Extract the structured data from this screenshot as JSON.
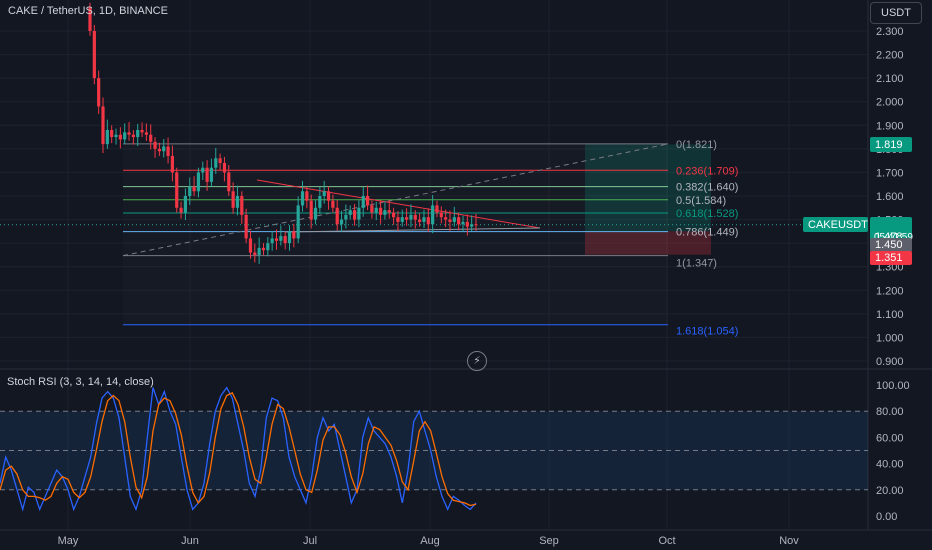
{
  "header": {
    "title": "CAKE / TetherUS, 1D, BINANCE",
    "currency": "USDT"
  },
  "indicator": {
    "title": "Stoch RSI (3, 3, 14, 14, close)"
  },
  "markers": {
    "bolt_icon": "lightning-icon"
  },
  "colors": {
    "up": "#26a69a",
    "down": "#f23645",
    "k_line": "#2962ff",
    "d_line": "#ff6d00",
    "background": "#131722"
  },
  "chart_data": {
    "type": "candlestick",
    "symbol": "CAKEUSDT",
    "x_ticks": [
      "May",
      "Jun",
      "Jul",
      "Aug",
      "Sep",
      "Oct",
      "Nov"
    ],
    "y_ticks": [
      "2.300",
      "2.200",
      "2.100",
      "2.000",
      "1.900",
      "1.800",
      "1.700",
      "1.600",
      "1.500",
      "1.400",
      "1.300",
      "1.200",
      "1.100",
      "1.000",
      "0.900"
    ],
    "y_range": [
      0.88,
      2.35
    ],
    "price_labels": {
      "last_symbol": "CAKEUSDT",
      "last_price": "1.478",
      "countdown": "05:41:59",
      "tp_price": "1.819",
      "entry_price": "1.450",
      "stop_price": "1.351"
    },
    "fib_levels": [
      {
        "label": "0(1.821)",
        "price": 1.821
      },
      {
        "label": "0.236(1.709)",
        "price": 1.709
      },
      {
        "label": "0.382(1.640)",
        "price": 1.64
      },
      {
        "label": "0.5(1.584)",
        "price": 1.584
      },
      {
        "label": "0.618(1.528)",
        "price": 1.528
      },
      {
        "label": "0.786(1.449)",
        "price": 1.449
      },
      {
        "label": "1(1.347)",
        "price": 1.347
      },
      {
        "label": "1.618(1.054)",
        "price": 1.054
      }
    ],
    "position": {
      "entry": 1.45,
      "target": 1.819,
      "stop": 1.351
    },
    "ohlc_closes": [
      2.3,
      2.1,
      1.98,
      1.82,
      1.88,
      1.85,
      1.86,
      1.84,
      1.87,
      1.86,
      1.85,
      1.88,
      1.87,
      1.86,
      1.83,
      1.8,
      1.79,
      1.81,
      1.77,
      1.7,
      1.55,
      1.53,
      1.6,
      1.64,
      1.62,
      1.7,
      1.72,
      1.66,
      1.72,
      1.76,
      1.74,
      1.7,
      1.62,
      1.55,
      1.6,
      1.52,
      1.42,
      1.36,
      1.35,
      1.38,
      1.37,
      1.4,
      1.42,
      1.41,
      1.43,
      1.4,
      1.45,
      1.42,
      1.56,
      1.62,
      1.58,
      1.5,
      1.55,
      1.6,
      1.62,
      1.58,
      1.55,
      1.48,
      1.5,
      1.52,
      1.54,
      1.5,
      1.55,
      1.6,
      1.56,
      1.53,
      1.55,
      1.52,
      1.54,
      1.53,
      1.51,
      1.49,
      1.51,
      1.5,
      1.52,
      1.5,
      1.49,
      1.51,
      1.48,
      1.56,
      1.53,
      1.51,
      1.5,
      1.49,
      1.51,
      1.48,
      1.49,
      1.47,
      1.48,
      1.478
    ],
    "ohlc_opens": [
      2.4,
      2.3,
      2.1,
      1.98,
      1.82,
      1.88,
      1.85,
      1.86,
      1.84,
      1.87,
      1.86,
      1.85,
      1.88,
      1.87,
      1.86,
      1.83,
      1.8,
      1.79,
      1.81,
      1.77,
      1.7,
      1.55,
      1.53,
      1.6,
      1.64,
      1.62,
      1.7,
      1.72,
      1.66,
      1.72,
      1.76,
      1.74,
      1.7,
      1.62,
      1.55,
      1.6,
      1.52,
      1.42,
      1.36,
      1.35,
      1.38,
      1.37,
      1.4,
      1.42,
      1.41,
      1.43,
      1.4,
      1.45,
      1.42,
      1.56,
      1.62,
      1.58,
      1.5,
      1.55,
      1.6,
      1.62,
      1.58,
      1.55,
      1.48,
      1.5,
      1.52,
      1.54,
      1.5,
      1.55,
      1.6,
      1.56,
      1.53,
      1.55,
      1.52,
      1.54,
      1.53,
      1.51,
      1.49,
      1.51,
      1.5,
      1.52,
      1.5,
      1.49,
      1.51,
      1.48,
      1.56,
      1.53,
      1.51,
      1.5,
      1.49,
      1.51,
      1.48,
      1.49,
      1.47,
      1.48
    ],
    "stoch_y_ticks": [
      "100.00",
      "80.00",
      "60.00",
      "40.00",
      "20.00",
      "0.00"
    ],
    "stoch_bands": {
      "upper": 80,
      "middle": 50,
      "lower": 20
    },
    "stoch_k": [
      25,
      45,
      35,
      20,
      5,
      22,
      18,
      5,
      15,
      25,
      35,
      30,
      20,
      5,
      15,
      30,
      45,
      70,
      90,
      95,
      90,
      75,
      45,
      15,
      5,
      20,
      60,
      98,
      85,
      95,
      80,
      70,
      45,
      20,
      5,
      10,
      25,
      55,
      80,
      92,
      98,
      90,
      70,
      50,
      25,
      15,
      35,
      75,
      90,
      88,
      75,
      45,
      30,
      20,
      10,
      30,
      60,
      75,
      65,
      70,
      50,
      30,
      10,
      20,
      60,
      75,
      65,
      60,
      55,
      45,
      30,
      10,
      35,
      72,
      80,
      65,
      50,
      30,
      15,
      5,
      15,
      12,
      8,
      5,
      10
    ],
    "stoch_d": [
      20,
      35,
      38,
      32,
      20,
      15,
      15,
      14,
      12,
      15,
      25,
      30,
      28,
      18,
      14,
      18,
      30,
      50,
      72,
      88,
      92,
      88,
      72,
      45,
      22,
      14,
      30,
      65,
      85,
      90,
      88,
      78,
      62,
      38,
      18,
      10,
      15,
      33,
      60,
      82,
      92,
      94,
      85,
      68,
      45,
      28,
      25,
      45,
      70,
      85,
      82,
      68,
      50,
      32,
      20,
      18,
      35,
      58,
      68,
      68,
      62,
      48,
      30,
      18,
      32,
      55,
      68,
      66,
      60,
      54,
      42,
      26,
      20,
      42,
      65,
      72,
      65,
      48,
      30,
      17,
      12,
      11,
      10,
      8,
      9
    ]
  }
}
